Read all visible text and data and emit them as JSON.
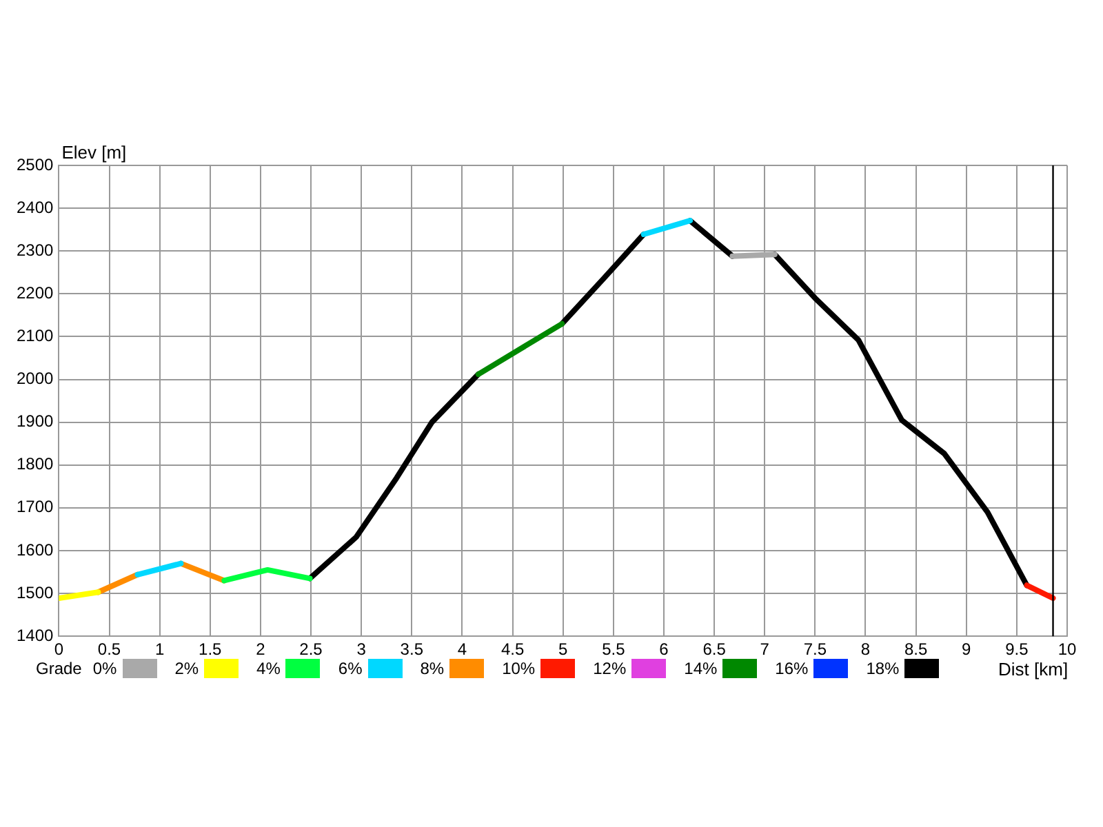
{
  "chart_data": {
    "type": "line",
    "xlabel": "Dist [km]",
    "ylabel": "Elev [m]",
    "legend_title": "Grade",
    "legend": "bottom",
    "grid": true,
    "marker": "none",
    "line_style": "solid",
    "xlim": [
      0,
      10
    ],
    "xticks": [
      0,
      0.5,
      1,
      1.5,
      2,
      2.5,
      3,
      3.5,
      4,
      4.5,
      5,
      5.5,
      6,
      6.5,
      7,
      7.5,
      8,
      8.5,
      9,
      9.5,
      10
    ],
    "ylim": [
      1400,
      2500
    ],
    "yticks": [
      1400,
      1500,
      1600,
      1700,
      1800,
      1900,
      2000,
      2100,
      2200,
      2300,
      2400,
      2500
    ],
    "ref_lines": [
      {
        "axis": "x",
        "value": 9.86,
        "color": "#000000"
      }
    ],
    "series": [
      {
        "name": "0%",
        "color": "#a9a9a9",
        "x": [
          6.68,
          7.1
        ],
        "values": [
          2288,
          2292
        ]
      },
      {
        "name": "2%",
        "color": "#ffff00",
        "x": [
          0,
          0.39
        ],
        "values": [
          1489,
          1503
        ]
      },
      {
        "name": "4%",
        "color": "#00ff40",
        "x": [
          1.64,
          2.07,
          2.49
        ],
        "values": [
          1530,
          1555,
          1535
        ]
      },
      {
        "name": "6%",
        "color": "#00d8ff",
        "x": [
          0.78,
          1.21,
          null,
          5.8,
          6.26
        ],
        "values": [
          1544,
          1570,
          null,
          2339,
          2371
        ]
      },
      {
        "name": "8%",
        "color": "#ff8c00",
        "x": [
          0.39,
          0.78,
          null,
          1.21,
          1.64
        ],
        "values": [
          1503,
          1544,
          null,
          1570,
          1530
        ]
      },
      {
        "name": "10%",
        "color": "#ff1a00",
        "x": [
          9.6,
          9.86
        ],
        "values": [
          1519,
          1489
        ]
      },
      {
        "name": "12%",
        "color": "#e040e0"
      },
      {
        "name": "14%",
        "color": "#008800",
        "x": [
          4.16,
          4.99
        ],
        "values": [
          2012,
          2130
        ]
      },
      {
        "name": "16%",
        "color": "#0033ff"
      },
      {
        "name": "18%",
        "color": "#000000",
        "x": [
          2.49,
          2.95,
          3.35,
          3.7,
          4.16,
          null,
          4.99,
          5.4,
          5.8,
          null,
          6.26,
          6.68,
          null,
          7.1,
          7.5,
          7.93,
          8.36,
          8.78,
          9.21,
          9.6
        ],
        "values": [
          1535,
          1632,
          1770,
          1900,
          2012,
          null,
          2130,
          2235,
          2339,
          null,
          2371,
          2288,
          null,
          2292,
          2190,
          2092,
          1905,
          1827,
          1690,
          1519
        ]
      }
    ]
  }
}
